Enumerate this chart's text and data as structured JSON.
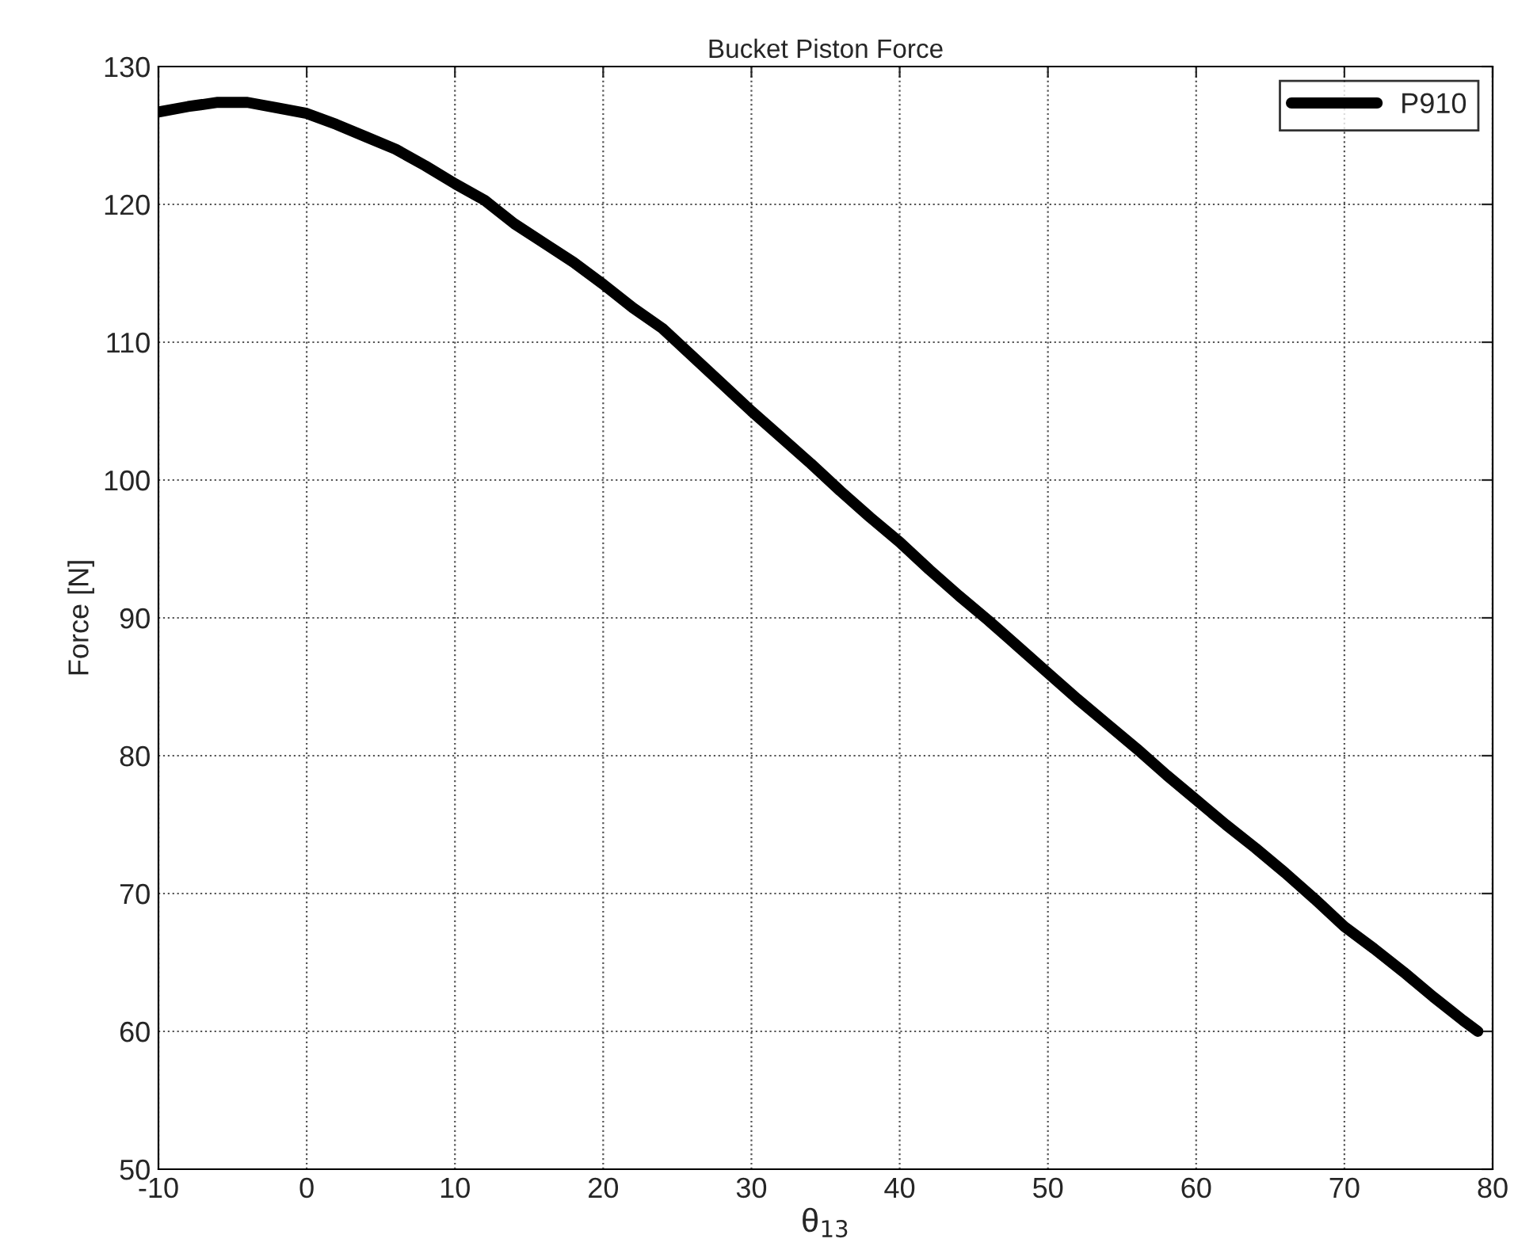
{
  "chart_data": {
    "type": "line",
    "title": "Bucket Piston Force",
    "xlabel": "θ$_{13}$",
    "ylabel": "Force [N]",
    "x": [
      -10,
      -8,
      -6,
      -4,
      -2,
      0,
      2,
      4,
      6,
      8,
      10,
      12,
      14,
      16,
      18,
      20,
      22,
      24,
      26,
      28,
      30,
      32,
      34,
      36,
      38,
      40,
      42,
      44,
      46,
      48,
      50,
      52,
      54,
      56,
      58,
      60,
      62,
      64,
      66,
      68,
      70,
      72,
      74,
      76,
      78,
      79
    ],
    "series": [
      {
        "name": "P910",
        "color": "#000000",
        "values": [
          126.7,
          127.1,
          127.4,
          127.4,
          127.0,
          126.6,
          125.8,
          124.9,
          124.0,
          122.8,
          121.5,
          120.3,
          118.6,
          117.2,
          115.8,
          114.2,
          112.5,
          111.0,
          109.0,
          107.0,
          105.0,
          103.1,
          101.2,
          99.2,
          97.3,
          95.5,
          93.5,
          91.6,
          89.8,
          87.9,
          86.0,
          84.1,
          82.3,
          80.5,
          78.6,
          76.8,
          75.0,
          73.3,
          71.5,
          69.6,
          67.6,
          66.0,
          64.3,
          62.5,
          60.8,
          60.0
        ]
      }
    ],
    "xlim": [
      -10,
      80
    ],
    "ylim": [
      50,
      130
    ],
    "xticks": [
      -10,
      0,
      10,
      20,
      30,
      40,
      50,
      60,
      70,
      80
    ],
    "yticks": [
      50,
      60,
      70,
      80,
      90,
      100,
      110,
      120,
      130
    ],
    "grid": true,
    "legend": "top right",
    "line_style": "solid",
    "marker": "none"
  }
}
